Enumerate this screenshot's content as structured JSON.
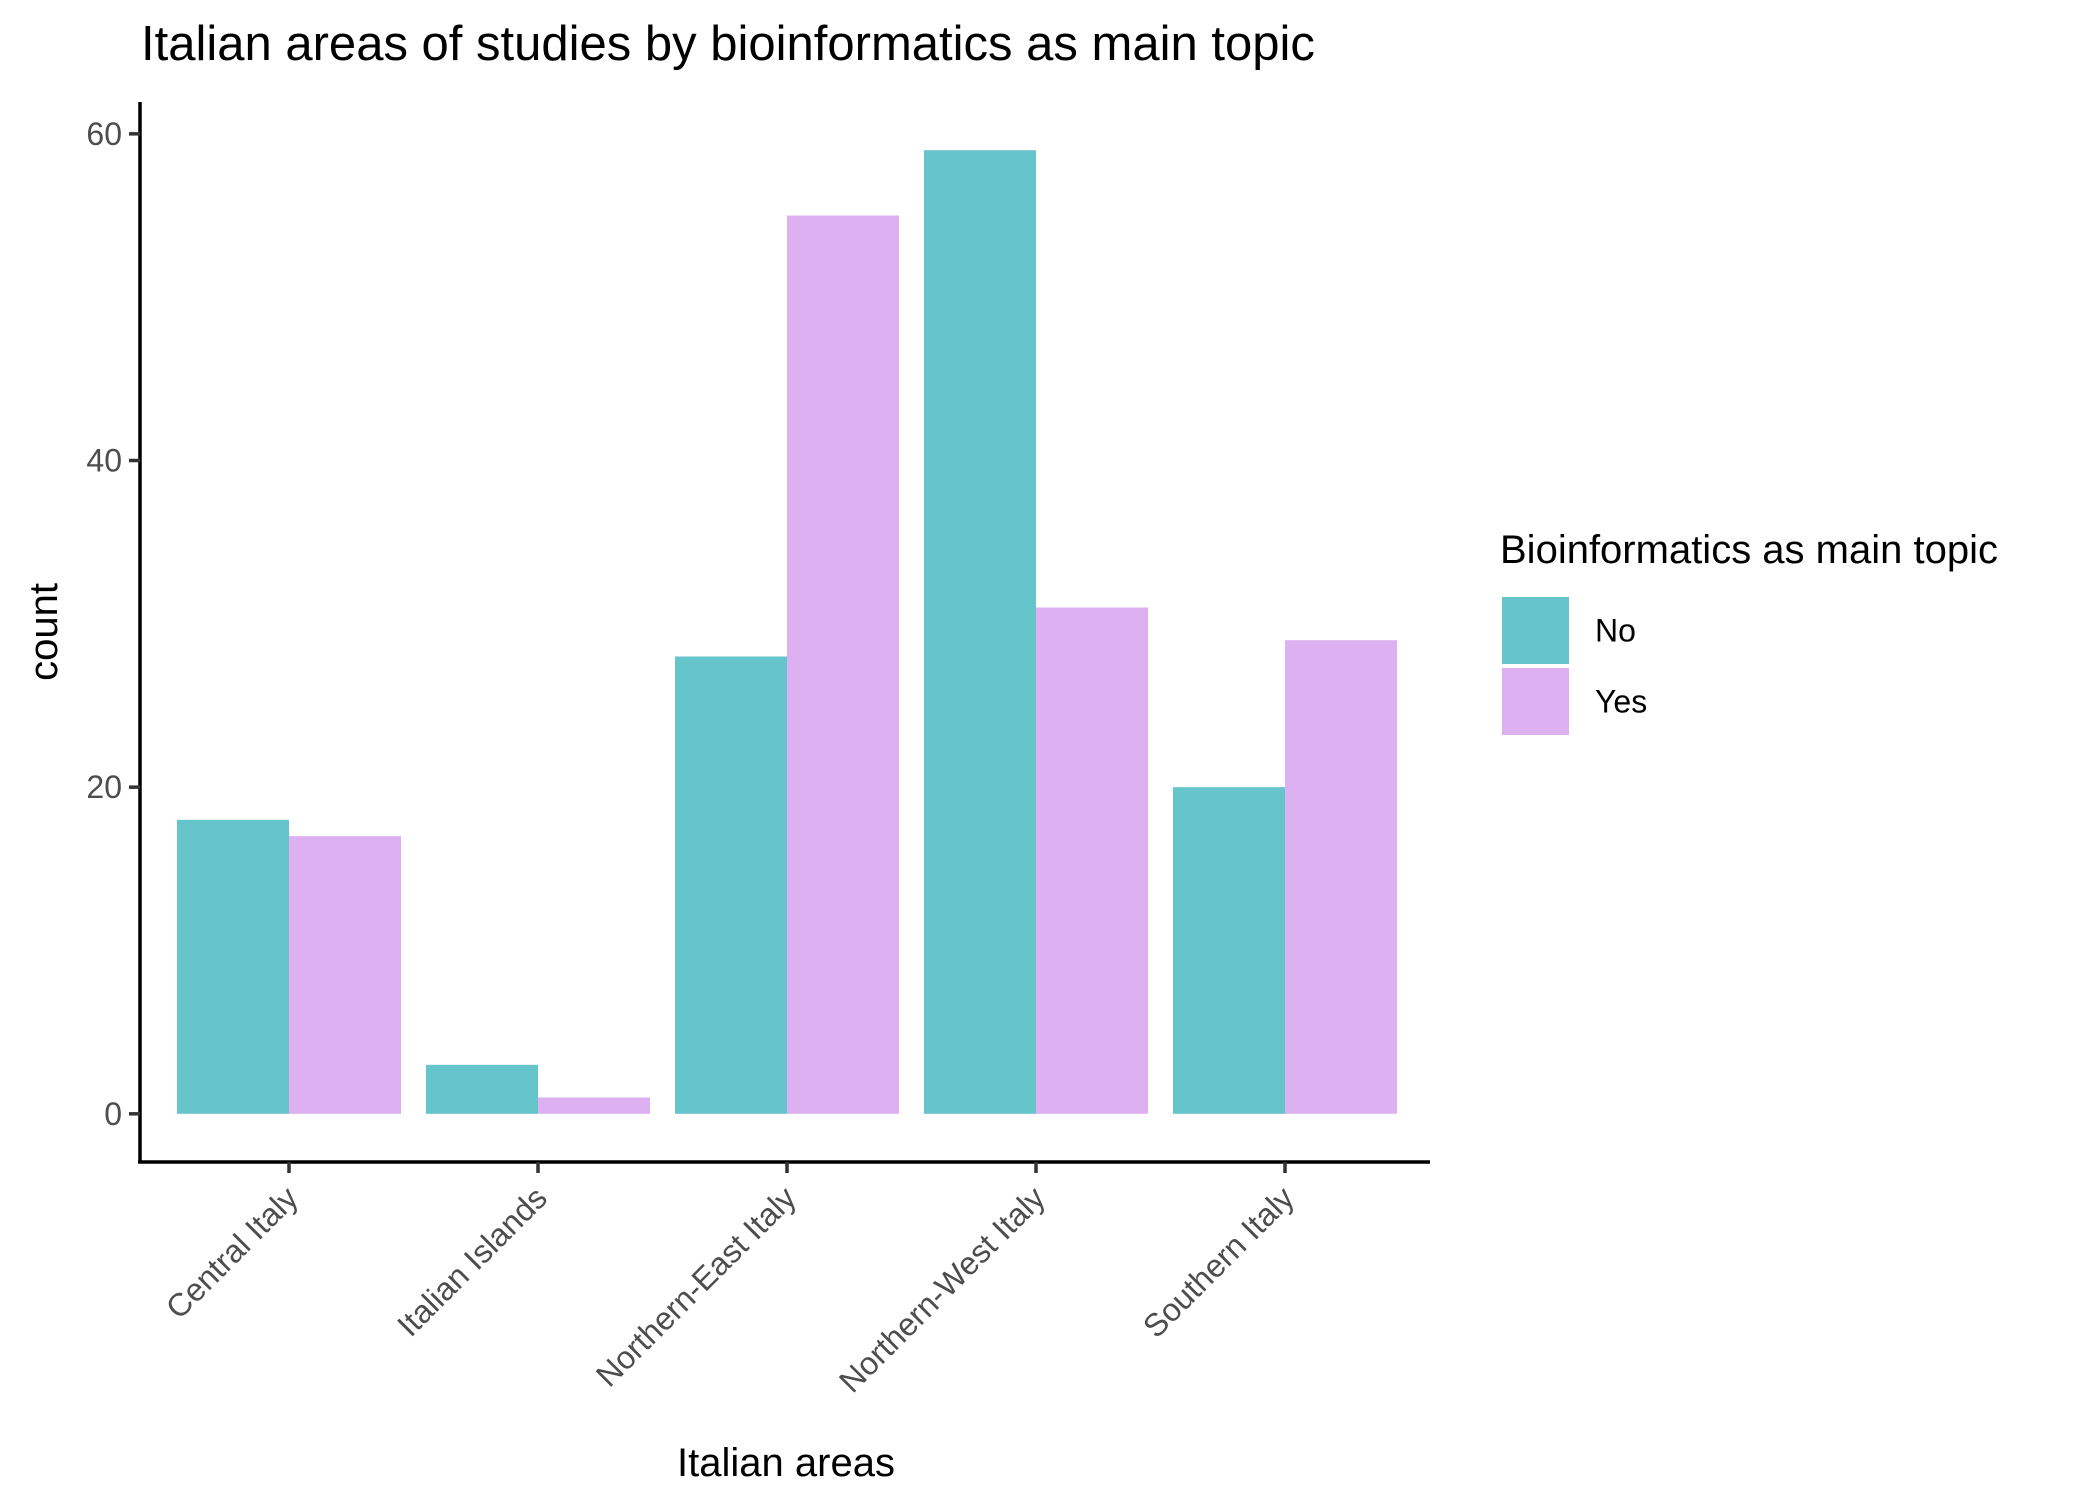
{
  "chart_data": {
    "type": "bar",
    "title": "Italian areas of studies by bioinformatics as main topic",
    "xlabel": "Italian areas",
    "ylabel": "count",
    "categories": [
      "Central Italy",
      "Italian Islands",
      "Northern-East Italy",
      "Northern-West Italy",
      "Southern Italy"
    ],
    "series": [
      {
        "name": "No",
        "color": "#66C4CB",
        "values": [
          18,
          3,
          28,
          59,
          20
        ]
      },
      {
        "name": "Yes",
        "color": "#DDB0F2",
        "values": [
          17,
          1,
          55,
          31,
          29
        ]
      }
    ],
    "yticks": [
      0,
      20,
      40,
      60
    ],
    "ylim": [
      -2.95,
      61.95
    ],
    "grid": false,
    "legend": {
      "title": "Bioinformatics as main topic",
      "placement": "right"
    }
  }
}
